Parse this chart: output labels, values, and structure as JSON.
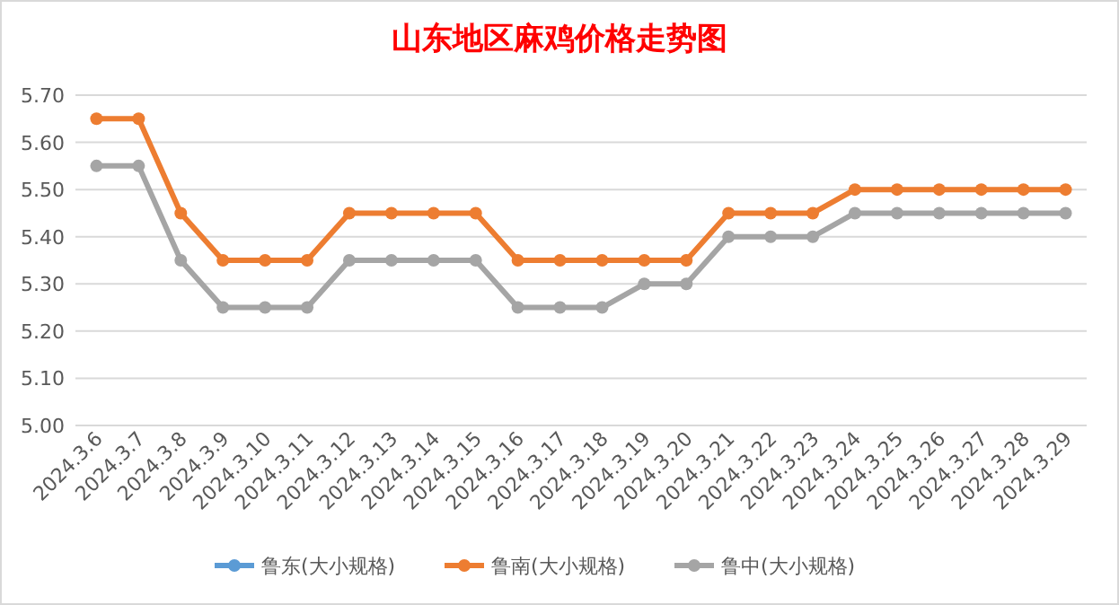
{
  "chart_data": {
    "type": "line",
    "title": "山东地区麻鸡价格走势图",
    "categories": [
      "2024.3.6",
      "2024.3.7",
      "2024.3.8",
      "2024.3.9",
      "2024.3.10",
      "2024.3.11",
      "2024.3.12",
      "2024.3.13",
      "2024.3.14",
      "2024.3.15",
      "2024.3.16",
      "2024.3.17",
      "2024.3.18",
      "2024.3.19",
      "2024.3.20",
      "2024.3.21",
      "2024.3.22",
      "2024.3.23",
      "2024.3.24",
      "2024.3.25",
      "2024.3.26",
      "2024.3.27",
      "2024.3.28",
      "2024.3.29"
    ],
    "series": [
      {
        "name": "鲁东(大小规格)",
        "color": "#5b9bd5",
        "values": [
          null,
          null,
          null,
          null,
          null,
          null,
          null,
          null,
          null,
          null,
          null,
          null,
          null,
          null,
          null,
          null,
          null,
          null,
          null,
          null,
          null,
          null,
          null,
          null
        ]
      },
      {
        "name": "鲁南(大小规格)",
        "color": "#ed7d31",
        "values": [
          5.65,
          5.65,
          5.45,
          5.35,
          5.35,
          5.35,
          5.45,
          5.45,
          5.45,
          5.45,
          5.35,
          5.35,
          5.35,
          5.35,
          5.35,
          5.45,
          5.45,
          5.45,
          5.5,
          5.5,
          5.5,
          5.5,
          5.5,
          5.5
        ]
      },
      {
        "name": "鲁中(大小规格)",
        "color": "#a5a5a5",
        "values": [
          5.55,
          5.55,
          5.35,
          5.25,
          5.25,
          5.25,
          5.35,
          5.35,
          5.35,
          5.35,
          5.25,
          5.25,
          5.25,
          5.3,
          5.3,
          5.4,
          5.4,
          5.4,
          5.45,
          5.45,
          5.45,
          5.45,
          5.45,
          5.45
        ]
      }
    ],
    "ylim": [
      5.0,
      5.7
    ],
    "yticks": [
      {
        "value": 5.0,
        "label": "5.00"
      },
      {
        "value": 5.1,
        "label": "5.10"
      },
      {
        "value": 5.2,
        "label": "5.20"
      },
      {
        "value": 5.3,
        "label": "5.30"
      },
      {
        "value": 5.4,
        "label": "5.40"
      },
      {
        "value": 5.5,
        "label": "5.50"
      },
      {
        "value": 5.6,
        "label": "5.60"
      },
      {
        "value": 5.7,
        "label": "5.70"
      }
    ],
    "grid": "y",
    "legend": "bottom",
    "marker": "circle",
    "line_style": "solid"
  }
}
